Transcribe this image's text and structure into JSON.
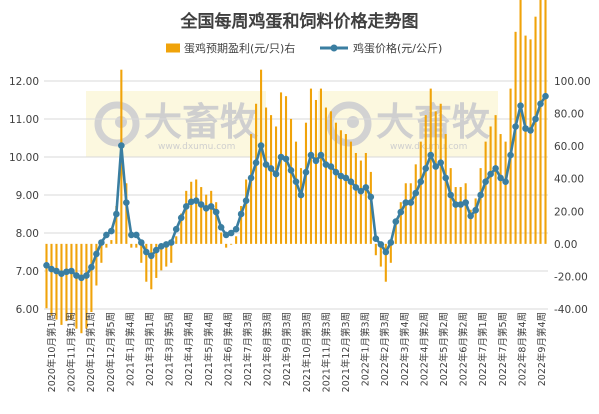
{
  "chart_data": {
    "type": "bar+line",
    "title": "全国每周鸡蛋和饲料价格走势图",
    "legend": {
      "placement": "top",
      "bar_label": "蛋鸡预期盈利(元/只)右",
      "line_label": "鸡蛋价格(元/公斤)"
    },
    "colors": {
      "bar": "#f0a30a",
      "line": "#3a7ea1",
      "marker": "#3a7ea1"
    },
    "watermark": {
      "text": "大畜牧",
      "sub": "www.dxumu.com",
      "count": 2
    },
    "left_axis": {
      "min": 6,
      "max": 12,
      "step": 1,
      "ticks": [
        "6.00",
        "7.00",
        "8.00",
        "9.00",
        "10.00",
        "11.00",
        "12.00"
      ]
    },
    "right_axis": {
      "min": -40,
      "max": 100,
      "step": 20,
      "ticks": [
        "-40.00",
        "-20.00",
        "0.00",
        "20.00",
        "40.00",
        "60.00",
        "80.00",
        "100.00"
      ]
    },
    "x_tick_labels": [
      "2020年10月第1周",
      "2020年11月第1周",
      "2020年12月第1周",
      "2020年12月第5周",
      "2021年1月第4周",
      "2021年3月第1周",
      "2021年3月第5周",
      "2021年4月第4周",
      "2021年5月第4周",
      "2021年6月第4周",
      "2021年7月第3周",
      "2021年8月第3周",
      "2021年9月第3周",
      "2021年10月第3周",
      "2021年11月第3周",
      "2021年12月第3周",
      "2022年1月第3周",
      "2022年2月第3周",
      "2022年3月第4周",
      "2022年4月第2周",
      "2022年5月第2周",
      "2022年6月第2周",
      "2022年7月第1周",
      "2022年7月第5周",
      "2022年8月第4周",
      "2022年9月第4周"
    ],
    "egg_price": [
      7.15,
      7.05,
      7.0,
      6.93,
      6.98,
      7.0,
      6.88,
      6.82,
      6.88,
      7.1,
      7.45,
      7.75,
      7.95,
      8.05,
      8.5,
      10.3,
      8.8,
      7.95,
      7.95,
      7.75,
      7.5,
      7.4,
      7.55,
      7.65,
      7.7,
      7.75,
      8.1,
      8.4,
      8.7,
      8.82,
      8.85,
      8.75,
      8.65,
      8.7,
      8.55,
      8.15,
      7.95,
      8.0,
      8.1,
      8.5,
      8.85,
      9.45,
      9.85,
      10.3,
      9.8,
      9.7,
      9.55,
      10.0,
      9.95,
      9.65,
      9.35,
      9.0,
      9.6,
      10.05,
      9.9,
      10.05,
      9.8,
      9.75,
      9.6,
      9.5,
      9.45,
      9.35,
      9.2,
      9.1,
      9.2,
      8.95,
      7.85,
      7.7,
      7.5,
      7.75,
      8.3,
      8.55,
      8.8,
      8.8,
      9.05,
      9.35,
      9.7,
      10.05,
      9.75,
      9.85,
      9.45,
      9.0,
      8.75,
      8.75,
      8.8,
      8.45,
      8.6,
      9.0,
      9.35,
      9.55,
      9.7,
      9.45,
      9.35,
      10.05,
      10.8,
      11.35,
      10.75,
      10.7,
      11.0,
      11.4,
      11.6
    ]
  }
}
